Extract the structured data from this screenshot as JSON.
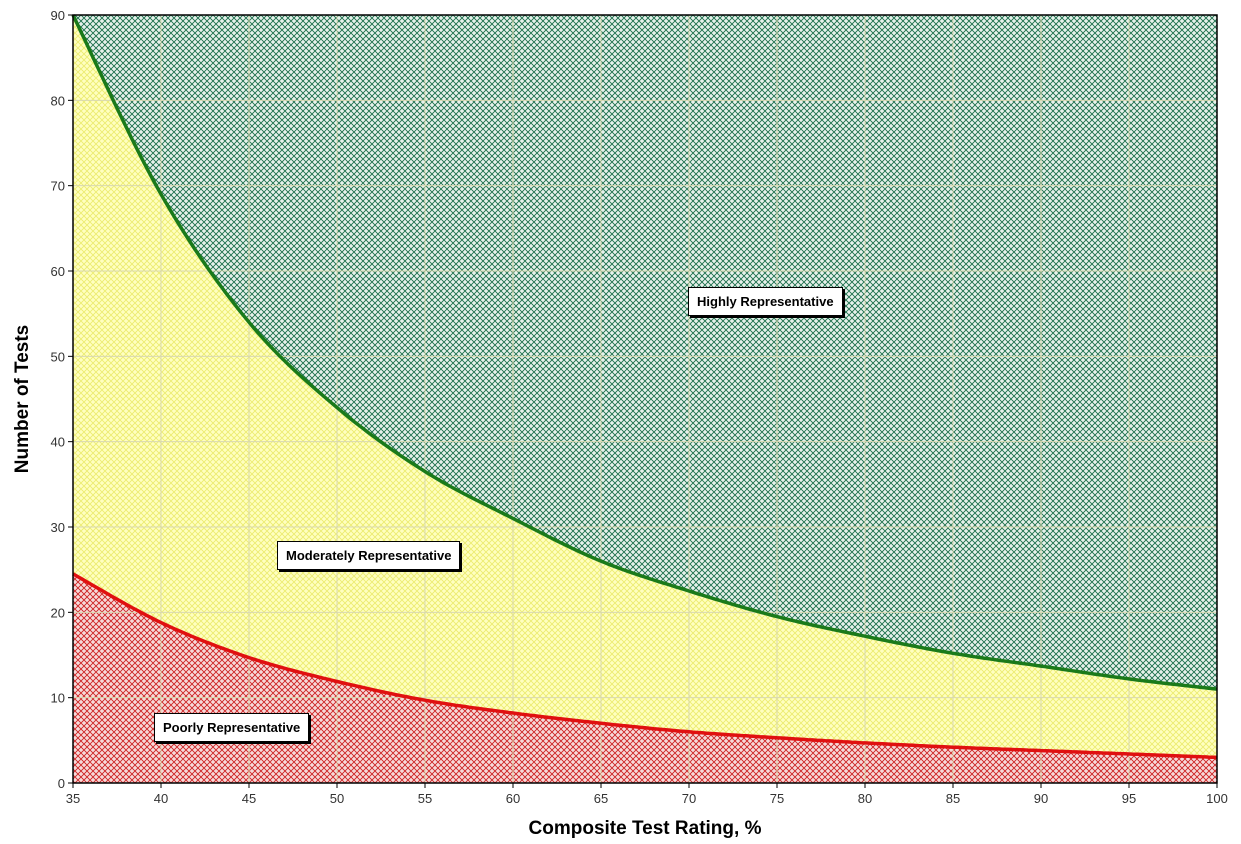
{
  "chart_data": {
    "type": "area",
    "xlabel": "Composite Test Rating, %",
    "ylabel": "Number of Tests",
    "xlim": [
      35,
      100
    ],
    "ylim": [
      0,
      90
    ],
    "x_ticks": [
      35,
      40,
      45,
      50,
      55,
      60,
      65,
      70,
      75,
      80,
      85,
      90,
      95,
      100
    ],
    "y_ticks": [
      0,
      10,
      20,
      30,
      40,
      50,
      60,
      70,
      80,
      90
    ],
    "grid": true,
    "series": [
      {
        "color": "#1a7a1a",
        "x": [
          35,
          40,
          45,
          50,
          55,
          60,
          65,
          70,
          75,
          80,
          85,
          90,
          95,
          100
        ],
        "y": [
          90,
          69,
          54,
          44,
          36.5,
          31,
          26,
          22.5,
          19.5,
          17.2,
          15.2,
          13.7,
          12.2,
          11
        ]
      },
      {
        "color": "#e01010",
        "x": [
          35,
          40,
          45,
          50,
          55,
          60,
          65,
          70,
          75,
          80,
          85,
          90,
          95,
          100
        ],
        "y": [
          24.5,
          18.8,
          14.7,
          11.9,
          9.7,
          8.2,
          7.0,
          6.0,
          5.3,
          4.7,
          4.2,
          3.8,
          3.4,
          3.0
        ]
      }
    ],
    "regions": [
      {
        "label": "Highly Representative",
        "color": "#1a6e4a"
      },
      {
        "label": "Moderately Representative",
        "color": "#ffff99"
      },
      {
        "label": "Poorly Representative",
        "color": "#cc2222"
      }
    ]
  }
}
